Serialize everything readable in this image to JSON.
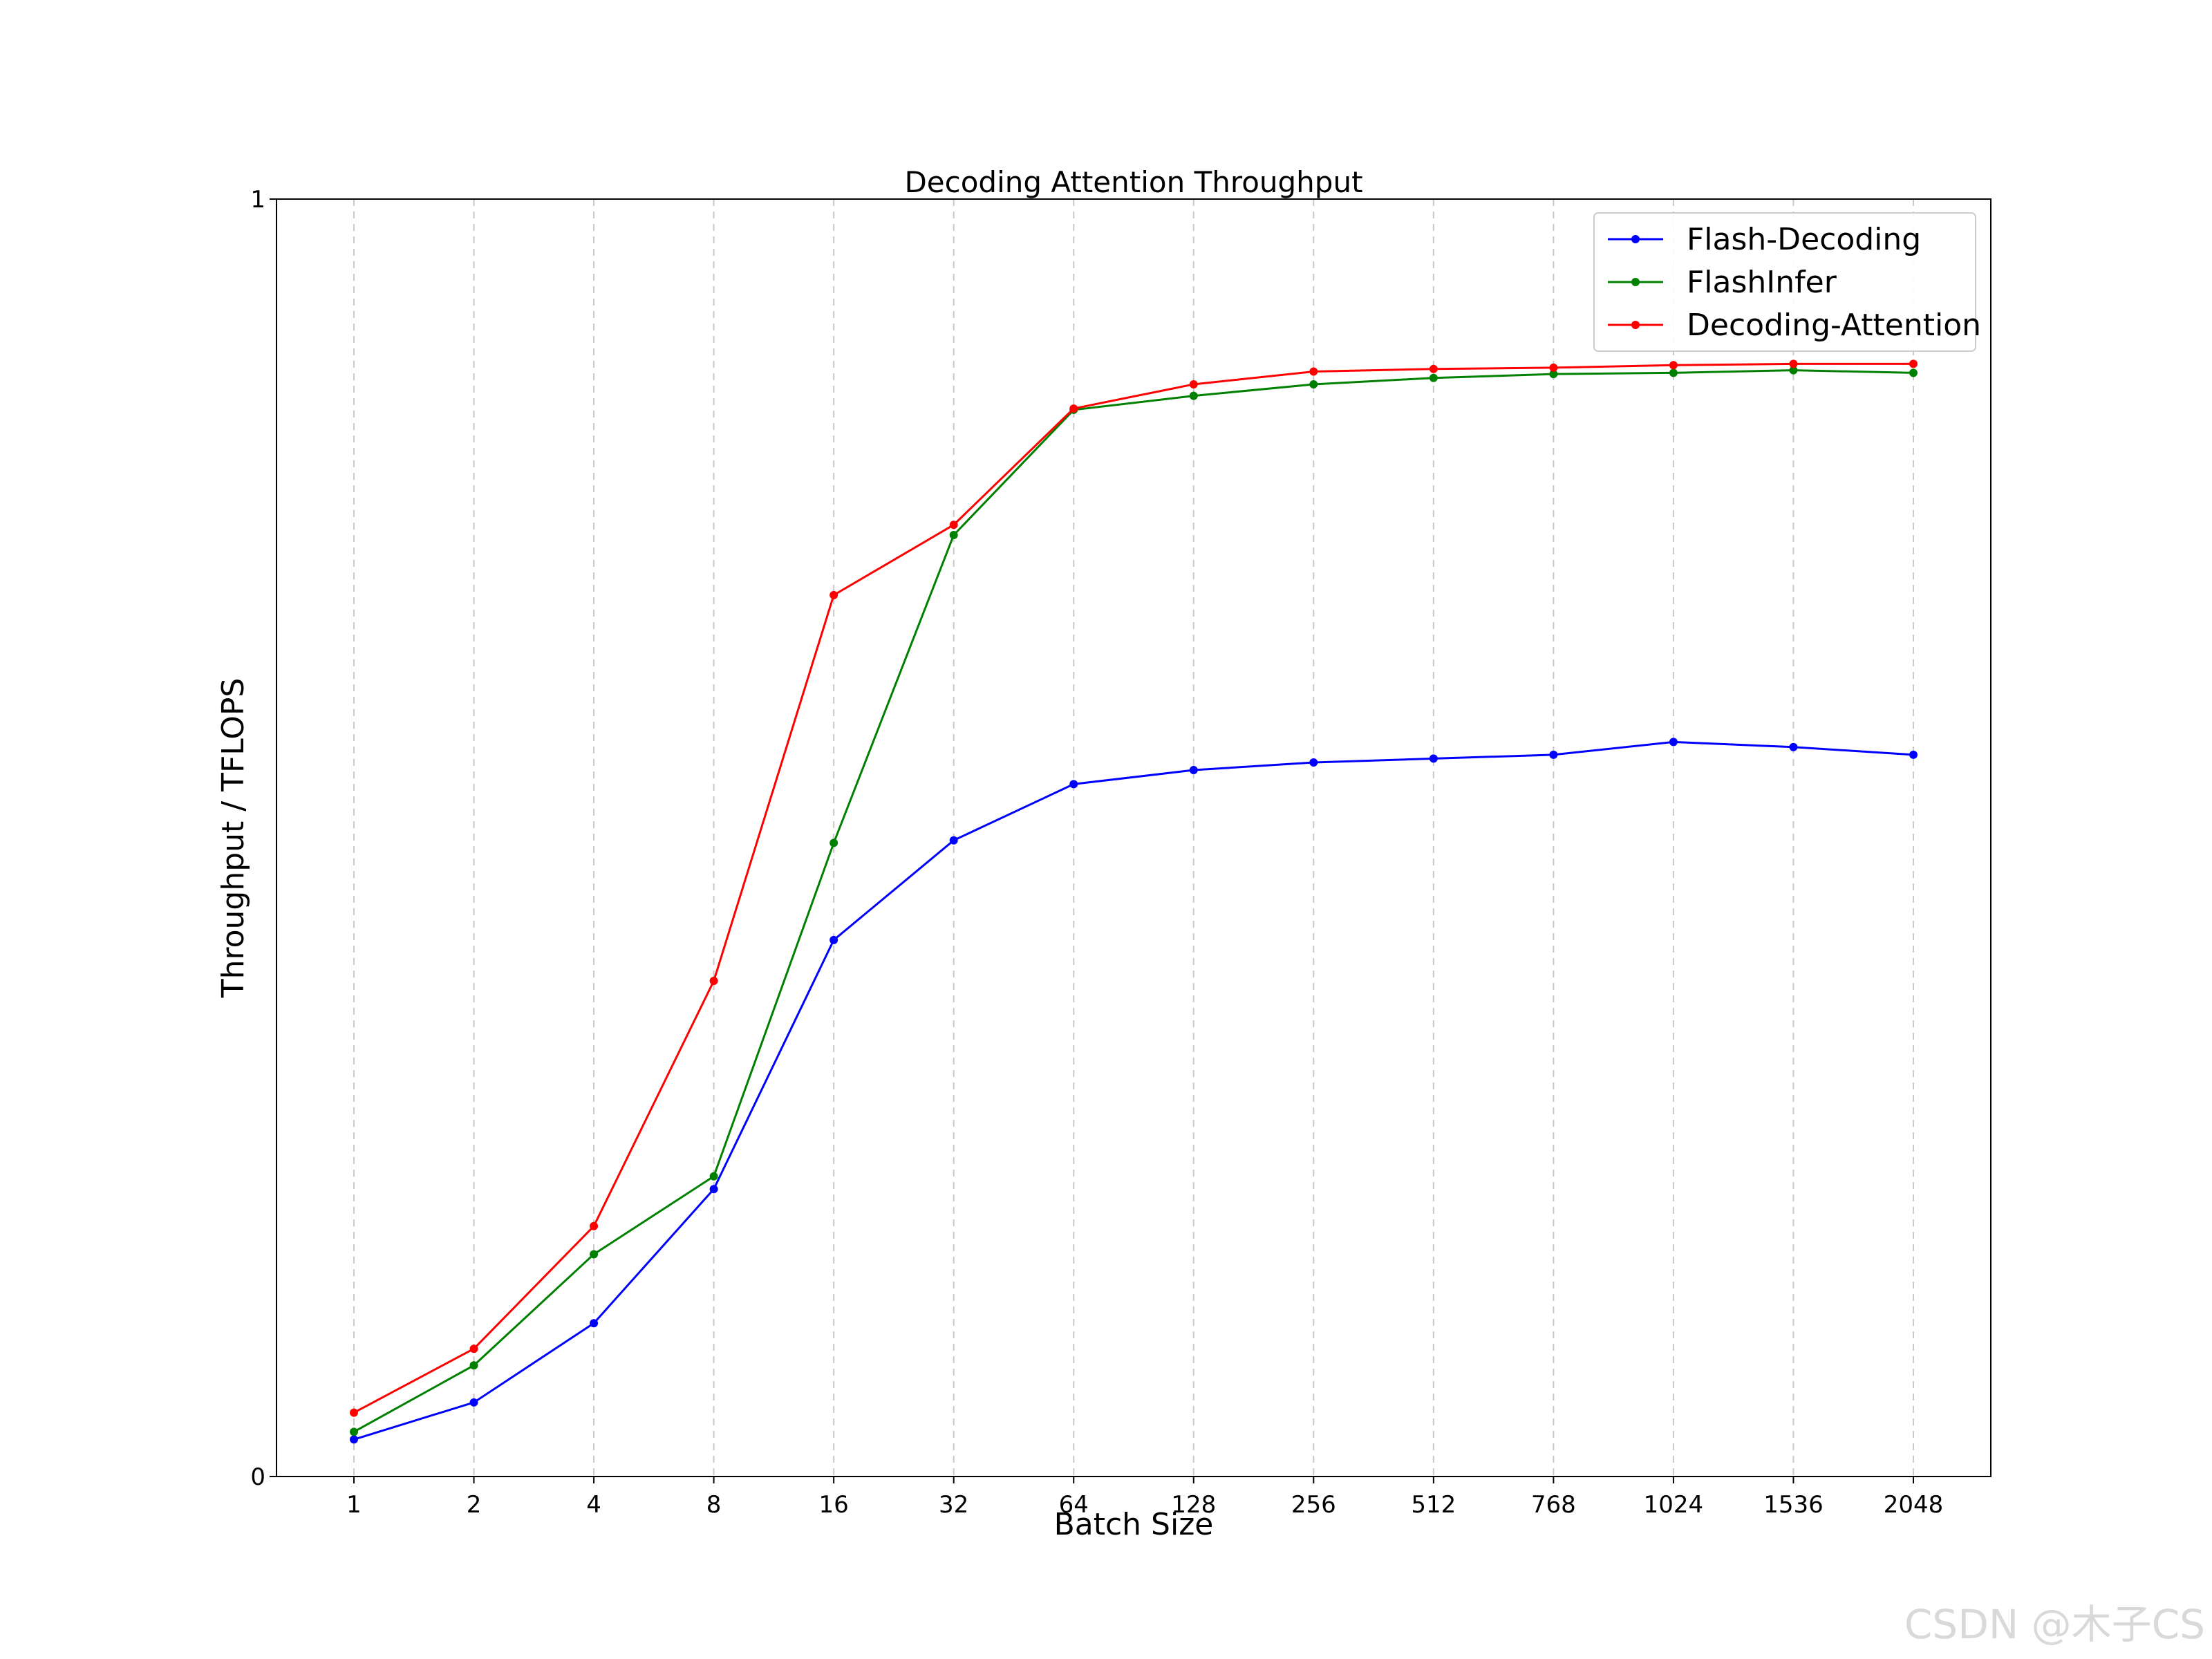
{
  "chart_data": {
    "type": "line",
    "title": "Decoding Attention Throughput",
    "xlabel": "Batch Size",
    "ylabel": "Throughput / TFLOPS",
    "categories": [
      "1",
      "2",
      "4",
      "8",
      "16",
      "32",
      "64",
      "128",
      "256",
      "512",
      "768",
      "1024",
      "1536",
      "2048"
    ],
    "ylim": [
      0,
      1
    ],
    "yticks": [
      "0",
      "1"
    ],
    "grid": "vertical dashed",
    "legend_position": "top-right",
    "series": [
      {
        "name": "Flash-Decoding",
        "color": "#0000ff",
        "values": [
          0.029,
          0.058,
          0.12,
          0.225,
          0.42,
          0.498,
          0.542,
          0.553,
          0.559,
          0.562,
          0.565,
          0.575,
          0.571,
          0.565
        ]
      },
      {
        "name": "FlashInfer",
        "color": "#008000",
        "values": [
          0.035,
          0.087,
          0.174,
          0.235,
          0.496,
          0.737,
          0.835,
          0.846,
          0.855,
          0.86,
          0.863,
          0.864,
          0.866,
          0.864
        ]
      },
      {
        "name": "Decoding-Attention",
        "color": "#ff0000",
        "values": [
          0.05,
          0.1,
          0.196,
          0.388,
          0.69,
          0.745,
          0.836,
          0.855,
          0.865,
          0.867,
          0.868,
          0.87,
          0.871,
          0.871
        ]
      }
    ]
  },
  "watermark": "CSDN @木子CS"
}
